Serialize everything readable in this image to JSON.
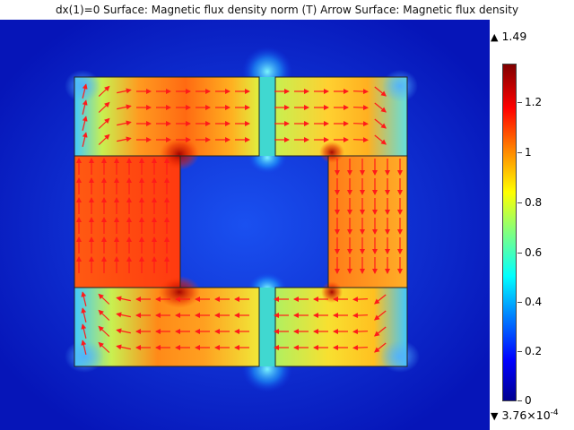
{
  "header": {
    "title": "dx(1)=0   Surface: Magnetic flux density norm (T)  Arrow Surface: Magnetic flux density"
  },
  "colorbar": {
    "max_label": "1.49",
    "min_label_base": "3.76×10",
    "min_label_exp": "-4",
    "ticks": [
      "1.2",
      "1",
      "0.8",
      "0.6",
      "0.4",
      "0.2",
      "0"
    ],
    "colormap": "rainbow",
    "colors": [
      "#00008f",
      "#0000ff",
      "#0080ff",
      "#00ffff",
      "#80ff80",
      "#ffff00",
      "#ff8000",
      "#ff0000",
      "#800000"
    ]
  },
  "plot": {
    "background_color": "#0a1fc8",
    "arrow_color": "#ff1a1a",
    "outline_color": "#222222"
  }
}
